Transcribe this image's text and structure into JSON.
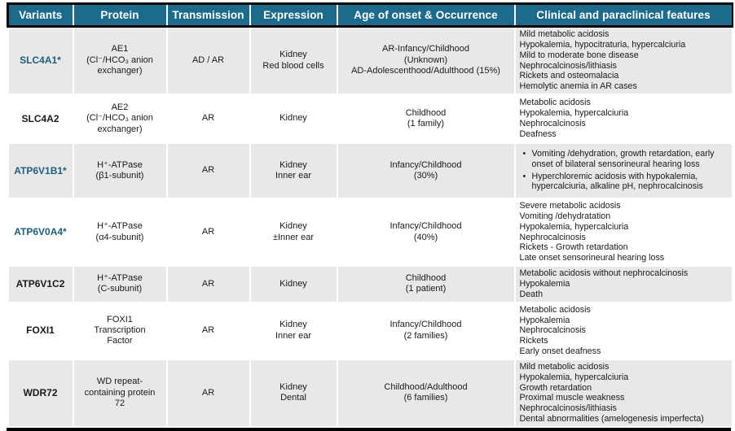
{
  "colors": {
    "header_bg": "#1c6b8d",
    "accent_variant_text": "#1b5f80",
    "row_alt_bg": "#e9e8e8",
    "border_black": "#000000",
    "header_text": "#ffffff"
  },
  "table": {
    "headers": [
      "Variants",
      "Protein",
      "Transmission",
      "Expression",
      "Age of onset & Occurrence",
      "Clinical and paraclinical features"
    ],
    "rows": [
      {
        "variant": "SLC4A1*",
        "accent": true,
        "protein": [
          "AE1",
          "(Cl⁻/HCO₃ anion",
          "exchanger)"
        ],
        "transmission": "AD / AR",
        "expression": [
          "Kidney",
          "Red blood cells"
        ],
        "age_occurrence": [
          "AR-Infancy/Childhood",
          "(Unknown)",
          "AD-Adolescenthood/Adulthood (15%)"
        ],
        "features": [
          "Mild metabolic acidosis",
          "Hypokalemia, hypocitraturia, hypercalciuria",
          "Mild to moderate bone disease",
          "Nephrocalcinosis/lithiasis",
          "Rickets and osteomalacia",
          "Hemolytic anemia in AR cases"
        ]
      },
      {
        "variant": "SLC4A2",
        "accent": false,
        "protein": [
          "AE2",
          "(Cl⁻/HCO₃ anion",
          "exchanger)"
        ],
        "transmission": "AR",
        "expression": [
          "Kidney"
        ],
        "age_occurrence": [
          "Childhood",
          "(1 family)"
        ],
        "features": [
          "Metabolic acidosis",
          "Hypokalemia, hypercalciuria",
          "Nephrocalcinosis",
          "Deafness"
        ]
      },
      {
        "variant": "ATP6V1B1*",
        "accent": true,
        "protein": [
          "H⁺-ATPase",
          "(β1-subunit)"
        ],
        "transmission": "AR",
        "expression": [
          "Kidney",
          "Inner ear"
        ],
        "age_occurrence": [
          "Infancy/Childhood",
          "(30%)"
        ],
        "features": [
          "Vomiting /dehydration, growth retardation, early onset of bilateral sensorineural hearing loss",
          "Hyperchloremic acidosis with hypokalemia, hypercalciuria, alkaline pH, nephrocalcinosis"
        ]
      },
      {
        "variant": "ATP6V0A4*",
        "accent": true,
        "protein": [
          "H⁺-ATPase",
          "(α4-subunit)"
        ],
        "transmission": "AR",
        "expression": [
          "Kidney",
          "±Inner ear"
        ],
        "age_occurrence": [
          "Infancy/Childhood",
          "(40%)"
        ],
        "features": [
          "Severe metabolic acidosis",
          "Vomiting /dehydratation",
          "Hypokalemia, hypercalciuria",
          "Nephrocalcinosis",
          "Rickets - Growth retardation",
          "Late onset sensorineural hearing loss"
        ]
      },
      {
        "variant": "ATP6V1C2",
        "accent": false,
        "protein": [
          "H⁺-ATPase",
          "(C-subunit)"
        ],
        "transmission": "AR",
        "expression": [
          "Kidney"
        ],
        "age_occurrence": [
          "Childhood",
          "(1 patient)"
        ],
        "features": [
          "Metabolic acidosis without nephrocalcinosis",
          "Hypokalemia",
          "Death"
        ]
      },
      {
        "variant": "FOXI1",
        "accent": false,
        "protein": [
          "FOXI1",
          "Transcription",
          "Factor"
        ],
        "transmission": "AR",
        "expression": [
          "Kidney",
          "Inner ear"
        ],
        "age_occurrence": [
          "Infancy/Childhood",
          "(2 families)"
        ],
        "features": [
          "Metabolic acidosis",
          "Hypokalemia",
          "Nephrocalcinosis",
          "Rickets",
          "Early onset deafness"
        ]
      },
      {
        "variant": "WDR72",
        "accent": false,
        "protein": [
          "WD repeat-",
          "containing protein",
          "72"
        ],
        "transmission": "AR",
        "expression": [
          "Kidney",
          "Dental"
        ],
        "age_occurrence": [
          "Childhood/Adulthood",
          "(6 families)"
        ],
        "features": [
          "Mild metabolic acidosis",
          "Hypokalemia, hypercalciuria",
          "Growth retardation",
          "Proximal muscle weakness",
          "Nephrocalcinosis/lithiasis",
          "Dental abnormalities (amelogenesis imperfecta)"
        ]
      }
    ]
  }
}
